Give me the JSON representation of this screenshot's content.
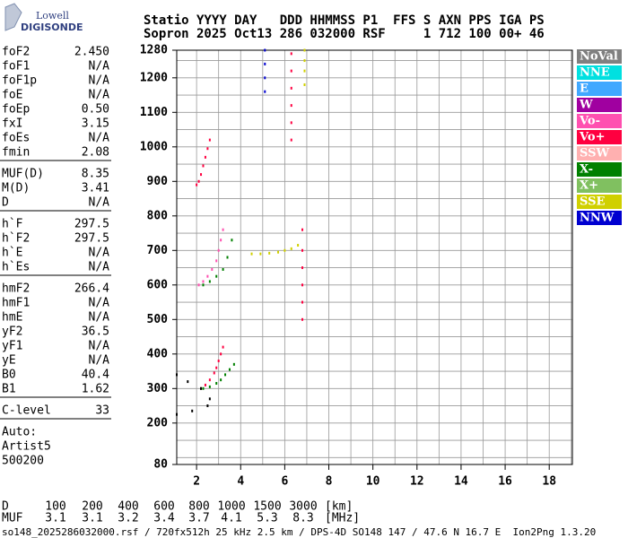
{
  "logo": {
    "top": "Lowell",
    "bottom": "DIGISONDE"
  },
  "header": {
    "line1": "Statio YYYY DAY   DDD HHMMSS P1  FFS S AXN PPS IGA PS",
    "line2": "Sopron 2025 Oct13 286 032000 RSF     1 712 100 00+ 46"
  },
  "parameters": [
    [
      [
        "foF2",
        "2.450"
      ],
      [
        "foF1",
        "N/A"
      ],
      [
        "foF1p",
        "N/A"
      ],
      [
        "foE",
        "N/A"
      ],
      [
        "foEp",
        "0.50"
      ],
      [
        "fxI",
        "3.15"
      ],
      [
        "foEs",
        "N/A"
      ],
      [
        "fmin",
        "2.08"
      ]
    ],
    [
      [
        "MUF(D)",
        "8.35"
      ],
      [
        "M(D)",
        "3.41"
      ],
      [
        "D",
        "N/A"
      ]
    ],
    [
      [
        "h`F",
        "297.5"
      ],
      [
        "h`F2",
        "297.5"
      ],
      [
        "h`E",
        "N/A"
      ],
      [
        "h`Es",
        "N/A"
      ]
    ],
    [
      [
        "hmF2",
        "266.4"
      ],
      [
        "hmF1",
        "N/A"
      ],
      [
        "hmE",
        "N/A"
      ],
      [
        "yF2",
        "36.5"
      ],
      [
        "yF1",
        "N/A"
      ],
      [
        "yE",
        "N/A"
      ],
      [
        "B0",
        "40.4"
      ],
      [
        "B1",
        "1.62"
      ]
    ],
    [
      [
        "C-level",
        "33"
      ]
    ]
  ],
  "auto": [
    "Auto:",
    "Artist5",
    "500200"
  ],
  "ionogram": {
    "xlim": [
      1.1,
      19.05
    ],
    "ylim": [
      80,
      1280
    ],
    "xticks": [
      2,
      4,
      6,
      8,
      10,
      12,
      14,
      16,
      18
    ],
    "yticks": [
      80,
      200,
      300,
      400,
      500,
      600,
      700,
      800,
      900,
      1000,
      1100,
      1200,
      1280
    ],
    "xgrid": [
      2,
      3,
      4,
      5,
      6,
      7,
      8,
      9,
      10,
      11,
      12,
      13,
      14,
      15,
      16,
      17,
      18,
      19
    ],
    "ygrid": [
      100,
      150,
      200,
      250,
      300,
      350,
      400,
      450,
      500,
      550,
      600,
      650,
      700,
      750,
      800,
      850,
      900,
      950,
      1000,
      1050,
      1100,
      1150,
      1200,
      1250
    ],
    "legend": [
      {
        "label": "NoVal",
        "color": "#808080"
      },
      {
        "label": "NNE",
        "color": "#00e0e0"
      },
      {
        "label": "E",
        "color": "#40a8ff"
      },
      {
        "label": "W",
        "color": "#a000a0"
      },
      {
        "label": "Vo-",
        "color": "#ff50b0"
      },
      {
        "label": "Vo+",
        "color": "#ff0040"
      },
      {
        "label": "SSW",
        "color": "#ffb0b0"
      },
      {
        "label": "X-",
        "color": "#008000"
      },
      {
        "label": "X+",
        "color": "#80c060"
      },
      {
        "label": "SSE",
        "color": "#d0d000"
      },
      {
        "label": "NNW",
        "color": "#0000d0"
      }
    ],
    "traces": [
      {
        "color": "#ff0040",
        "x": [
          2.2,
          2.4,
          2.6,
          2.8,
          2.9,
          3.0,
          3.1,
          3.2
        ],
        "y": [
          300,
          310,
          325,
          345,
          360,
          380,
          400,
          420
        ]
      },
      {
        "color": "#008000",
        "x": [
          2.3,
          2.6,
          2.9,
          3.1,
          3.3,
          3.5,
          3.7
        ],
        "y": [
          300,
          305,
          315,
          325,
          340,
          355,
          370
        ]
      },
      {
        "color": "#ff50b0",
        "x": [
          2.1,
          2.3,
          2.5,
          2.7,
          2.9,
          3.0,
          3.1,
          3.2
        ],
        "y": [
          600,
          610,
          625,
          645,
          670,
          700,
          730,
          760
        ]
      },
      {
        "color": "#008000",
        "x": [
          2.3,
          2.6,
          2.9,
          3.2,
          3.4,
          3.6
        ],
        "y": [
          600,
          610,
          625,
          645,
          680,
          730
        ]
      },
      {
        "color": "#ff0040",
        "x": [
          2.0,
          2.1,
          2.2,
          2.3,
          2.4,
          2.5,
          2.6
        ],
        "y": [
          890,
          900,
          920,
          945,
          970,
          995,
          1020
        ]
      },
      {
        "color": "#d0d000",
        "x": [
          4.5,
          4.9,
          5.3,
          5.7,
          6.0,
          6.3,
          6.6
        ],
        "y": [
          690,
          690,
          692,
          695,
          700,
          705,
          715
        ]
      },
      {
        "color": "#ff0040",
        "x": [
          6.8,
          6.8,
          6.8,
          6.8,
          6.8,
          6.8
        ],
        "y": [
          500,
          550,
          600,
          650,
          700,
          760
        ]
      },
      {
        "color": "#ff0040",
        "x": [
          6.3,
          6.3,
          6.3,
          6.3,
          6.3,
          6.3
        ],
        "y": [
          1020,
          1070,
          1120,
          1170,
          1220,
          1270
        ]
      },
      {
        "color": "#0000d0",
        "x": [
          5.1,
          5.1,
          5.1,
          5.1
        ],
        "y": [
          1160,
          1200,
          1240,
          1280
        ]
      },
      {
        "color": "#d0d000",
        "x": [
          6.9,
          6.9,
          6.9,
          6.9
        ],
        "y": [
          1180,
          1220,
          1250,
          1280
        ]
      },
      {
        "color": "#000000",
        "x": [
          1.1,
          1.6,
          2.2,
          2.6,
          2.5,
          1.8,
          1.1
        ],
        "y": [
          340,
          320,
          300,
          270,
          250,
          235,
          225
        ]
      }
    ]
  },
  "bottom_table": [
    [
      "D",
      "100",
      "200",
      "400",
      "600",
      "800",
      "1000",
      "1500",
      "3000",
      "[km]"
    ],
    [
      "MUF",
      "3.1",
      "3.1",
      "3.2",
      "3.4",
      "3.7",
      "4.1",
      "5.3",
      "8.3",
      "[MHz]"
    ]
  ],
  "footer": "so148_2025286032000.rsf / 720fx512h 25 kHz 2.5 km / DPS-4D SO148 147 / 47.6 N 16.7 E  Ion2Png 1.3.20"
}
